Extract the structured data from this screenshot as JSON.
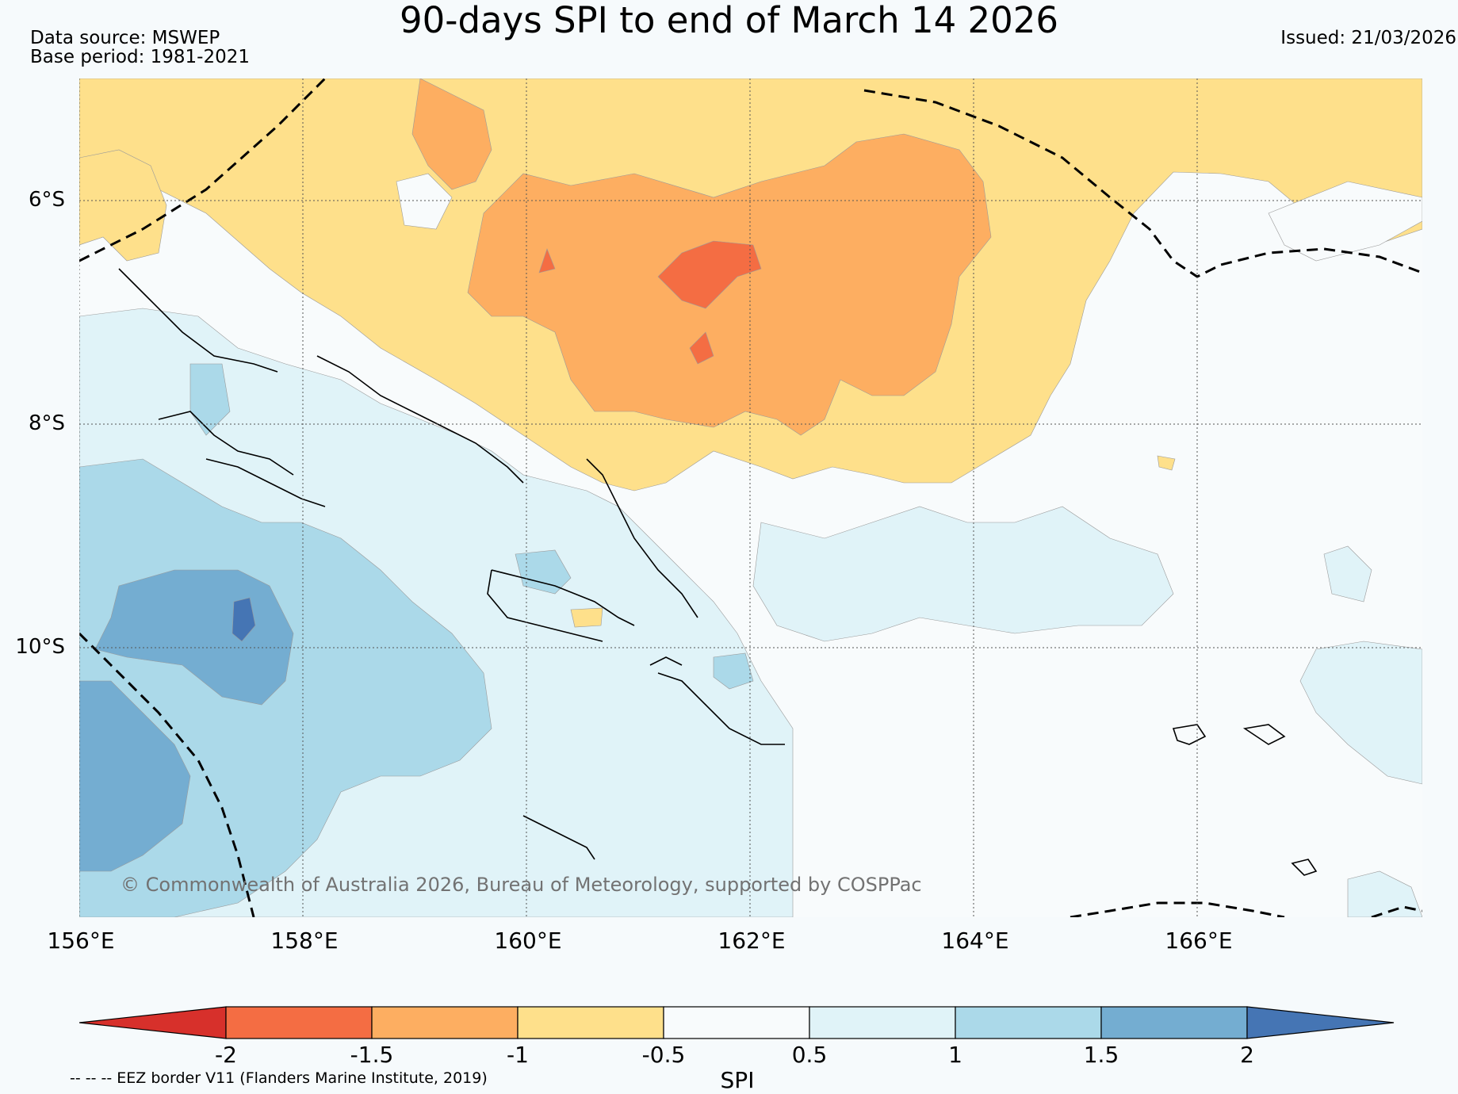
{
  "title": "90-days SPI to end of March 14 2026",
  "data_source": "Data source: MSWEP",
  "base_period": "Base period: 1981-2021",
  "issued": "Issued: 21/03/2026",
  "credit": "© Commonwealth of Australia 2026, Bureau of Meteorology, supported by COSPPac",
  "eez_note": "-- -- -- EEZ border V11 (Flanders Marine Institute, 2019)",
  "map": {
    "lat_labels": [
      "6°S",
      "8°S",
      "10°S"
    ],
    "lon_labels": [
      "156°E",
      "158°E",
      "160°E",
      "162°E",
      "164°E",
      "166°E"
    ]
  },
  "colorbar": {
    "label": "SPI",
    "ticks": [
      "-2",
      "-1.5",
      "-1",
      "-0.5",
      "0.5",
      "1",
      "1.5",
      "2"
    ],
    "colors": [
      "#d7302b",
      "#f46d43",
      "#fdae61",
      "#fee08b",
      "#f8fbfc",
      "#e0f3f8",
      "#abd9e9",
      "#74add1",
      "#4575b4"
    ]
  }
}
